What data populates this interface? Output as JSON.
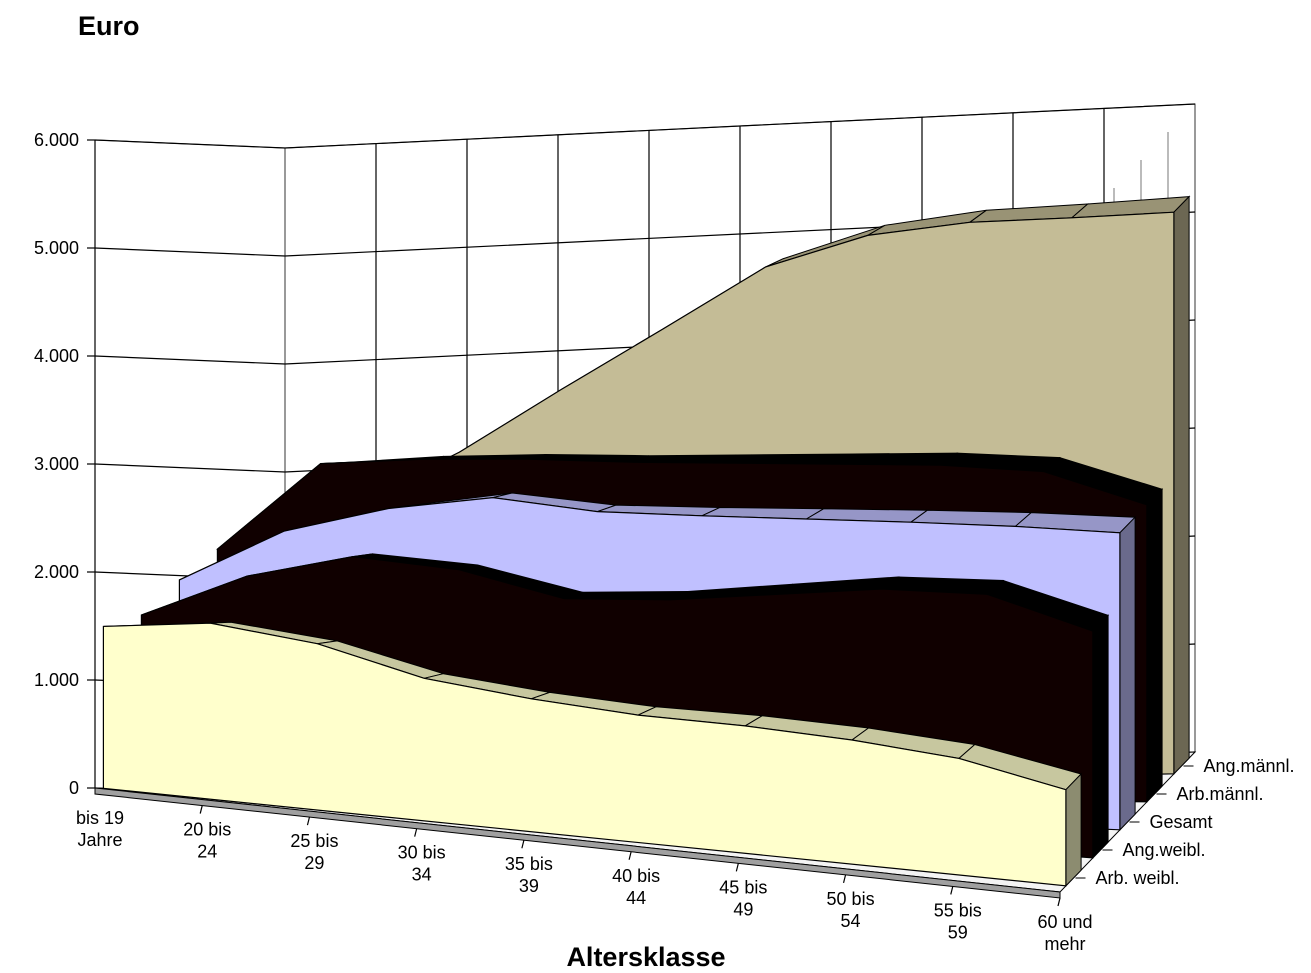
{
  "chart_data": {
    "type": "area",
    "variant": "3d-area",
    "ylabel": "Euro",
    "xlabel": "Altersklasse",
    "ylim": [
      0,
      6000
    ],
    "yticks": [
      0,
      1000,
      2000,
      3000,
      4000,
      5000,
      6000
    ],
    "ytick_labels": [
      "0",
      "1.000",
      "2.000",
      "3.000",
      "4.000",
      "5.000",
      "6.000"
    ],
    "categories": [
      [
        "bis 19",
        "Jahre"
      ],
      [
        "20 bis",
        "24"
      ],
      [
        "25 bis",
        "29"
      ],
      [
        "30 bis",
        "34"
      ],
      [
        "35 bis",
        "39"
      ],
      [
        "40 bis",
        "44"
      ],
      [
        "45 bis",
        "49"
      ],
      [
        "50 bis",
        "54"
      ],
      [
        "55 bis",
        "59"
      ],
      [
        "60 und",
        "mehr"
      ]
    ],
    "grid": true,
    "series": [
      {
        "name": "Arb. weibl.",
        "color": "#FFFFCC",
        "values": [
          1500,
          1630,
          1540,
          1320,
          1230,
          1180,
          1180,
          1150,
          1080,
          890
        ]
      },
      {
        "name": "Ang.weibl.",
        "color": "#100000",
        "values": [
          1620,
          2050,
          2300,
          2250,
          2050,
          2110,
          2230,
          2350,
          2370,
          2100
        ]
      },
      {
        "name": "Gesamt",
        "color": "#C0C0FF",
        "values": [
          1960,
          2450,
          2700,
          2840,
          2750,
          2750,
          2760,
          2770,
          2770,
          2750
        ]
      },
      {
        "name": "Arb.männl.",
        "color": "#100000",
        "values": [
          2260,
          3060,
          3110,
          3120,
          3100,
          3100,
          3100,
          3100,
          3050,
          2750
        ]
      },
      {
        "name": "Ang.männl.",
        "color": "#C4BC96",
        "values": [
          2180,
          2680,
          3130,
          3690,
          4230,
          4780,
          5050,
          5150,
          5170,
          5200
        ]
      }
    ]
  }
}
